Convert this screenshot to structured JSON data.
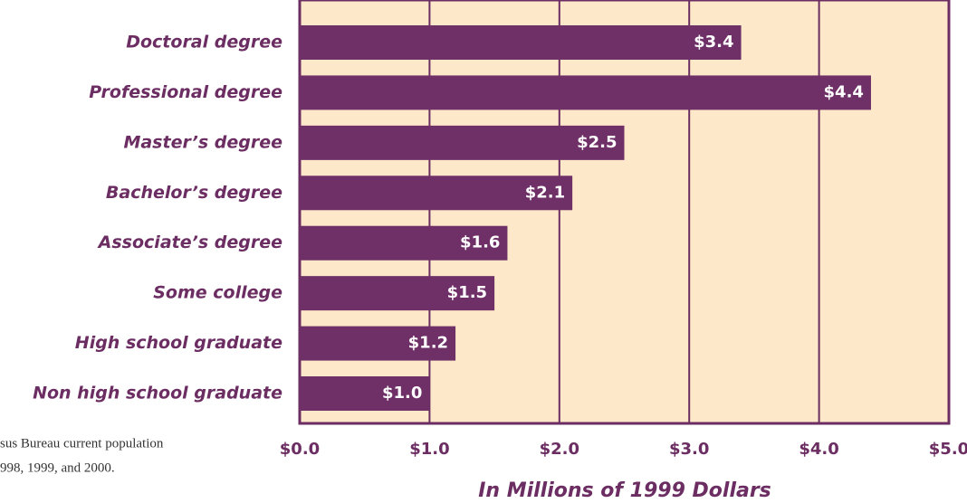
{
  "chart_data": {
    "type": "bar",
    "orientation": "horizontal",
    "categories": [
      "Doctoral degree",
      "Professional degree",
      "Master’s degree",
      "Bachelor’s degree",
      "Associate’s degree",
      "Some college",
      "High school graduate",
      "Non high school graduate"
    ],
    "values": [
      3.4,
      4.4,
      2.5,
      2.1,
      1.6,
      1.5,
      1.2,
      1.0
    ],
    "value_labels": [
      "$3.4",
      "$4.4",
      "$2.5",
      "$2.1",
      "$1.6",
      "$1.5",
      "$1.2",
      "$1.0"
    ],
    "color": "#6f2f67",
    "xlim": [
      0,
      5
    ],
    "xticks": [
      {
        "value": 0,
        "label": "$0.0"
      },
      {
        "value": 1,
        "label": "$1.0"
      },
      {
        "value": 2,
        "label": "$2.0"
      },
      {
        "value": 3,
        "label": "$3.0"
      },
      {
        "value": 4,
        "label": "$4.0"
      },
      {
        "value": 5,
        "label": "$5.0"
      }
    ],
    "grid": true,
    "x_label": "In Millions of 1999 Dollars",
    "notes": [
      "sus Bureau current population",
      "998, 1999, and 2000."
    ]
  }
}
